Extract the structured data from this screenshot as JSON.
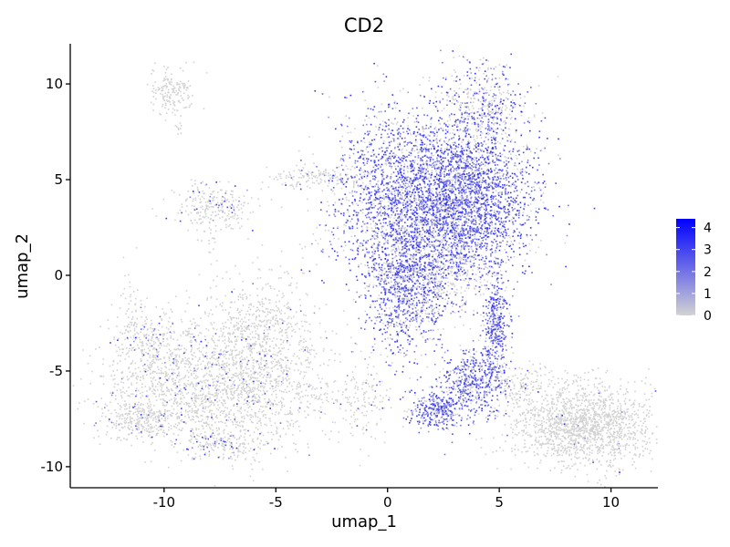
{
  "chart_data": {
    "type": "scatter",
    "title": "CD2",
    "xlabel": "umap_1",
    "ylabel": "umap_2",
    "xlim": [
      -14.2,
      12.1
    ],
    "ylim": [
      -11.1,
      12.1
    ],
    "x_ticks": [
      -10,
      -5,
      0,
      5,
      10
    ],
    "y_ticks": [
      -10,
      -5,
      0,
      5,
      10
    ],
    "x_tick_labels": [
      "-10",
      "-5",
      "0",
      "5",
      "10"
    ],
    "y_tick_labels": [
      "-10",
      "-5",
      "0",
      "5",
      "10"
    ],
    "grid": false,
    "legend_position": "right",
    "color_scale": {
      "low_color": "#d3d3d3",
      "high_color": "#0000ff",
      "min": 0,
      "max": 4.4,
      "ticks": [
        0,
        1,
        2,
        3,
        4
      ],
      "tick_labels": [
        "0",
        "1",
        "2",
        "3",
        "4"
      ]
    },
    "clusters": [
      {
        "cx": -9.6,
        "cy": 9.6,
        "sx": 0.55,
        "sy": 0.55,
        "n": 160,
        "expr": 0.02
      },
      {
        "cx": -9.4,
        "cy": 8.2,
        "sx": 0.08,
        "sy": 0.35,
        "n": 12,
        "expr": 0.0
      },
      {
        "cx": -7.8,
        "cy": 3.6,
        "sx": 0.9,
        "sy": 0.6,
        "n": 240,
        "expr": 0.12
      },
      {
        "cx": -7.9,
        "cy": 1.8,
        "sx": 0.15,
        "sy": 0.5,
        "n": 14,
        "expr": 0.0
      },
      {
        "cx": -7.5,
        "cy": -5.8,
        "sx": 2.6,
        "sy": 1.6,
        "n": 1800,
        "expr": 0.06
      },
      {
        "cx": -5.8,
        "cy": -2.8,
        "sx": 1.2,
        "sy": 1.6,
        "n": 600,
        "expr": 0.04
      },
      {
        "cx": -10.8,
        "cy": -3.8,
        "sx": 0.8,
        "sy": 1.2,
        "n": 250,
        "expr": 0.08
      },
      {
        "cx": -11.0,
        "cy": -7.5,
        "sx": 0.8,
        "sy": 0.5,
        "n": 260,
        "expr": 0.05
      },
      {
        "cx": -7.6,
        "cy": -8.8,
        "sx": 0.9,
        "sy": 0.4,
        "n": 150,
        "expr": 0.2
      },
      {
        "cx": -11.5,
        "cy": -1.8,
        "sx": 0.25,
        "sy": 0.9,
        "n": 30,
        "expr": 0.0
      },
      {
        "cx": -3.2,
        "cy": 5.2,
        "sx": 1.0,
        "sy": 0.3,
        "n": 140,
        "expr": 0.05
      },
      {
        "cx": 0.8,
        "cy": 4.0,
        "sx": 1.6,
        "sy": 2.2,
        "n": 2200,
        "expr": 0.65
      },
      {
        "cx": 3.6,
        "cy": 4.0,
        "sx": 1.5,
        "sy": 2.0,
        "n": 2200,
        "expr": 0.78
      },
      {
        "cx": 0.8,
        "cy": -0.8,
        "sx": 1.0,
        "sy": 1.6,
        "n": 1000,
        "expr": 0.7
      },
      {
        "cx": 4.2,
        "cy": 8.8,
        "sx": 1.0,
        "sy": 1.3,
        "n": 500,
        "expr": 0.4
      },
      {
        "cx": 2.8,
        "cy": 0.8,
        "sx": 0.8,
        "sy": 1.3,
        "n": 350,
        "expr": 0.35
      },
      {
        "cx": 4.8,
        "cy": -2.5,
        "sx": 0.3,
        "sy": 1.6,
        "n": 400,
        "expr": 0.75
      },
      {
        "cx": 3.8,
        "cy": -5.6,
        "sx": 0.8,
        "sy": 0.9,
        "n": 500,
        "expr": 0.78
      },
      {
        "cx": 2.2,
        "cy": -7.0,
        "sx": 0.6,
        "sy": 0.5,
        "n": 300,
        "expr": 0.8
      },
      {
        "cx": -1.0,
        "cy": -6.5,
        "sx": 0.8,
        "sy": 0.9,
        "n": 120,
        "expr": 0.12
      },
      {
        "cx": 6.0,
        "cy": -5.6,
        "sx": 1.0,
        "sy": 0.6,
        "n": 150,
        "expr": 0.03
      },
      {
        "cx": 8.8,
        "cy": -7.8,
        "sx": 1.6,
        "sy": 1.1,
        "n": 1600,
        "expr": 0.01
      }
    ]
  }
}
